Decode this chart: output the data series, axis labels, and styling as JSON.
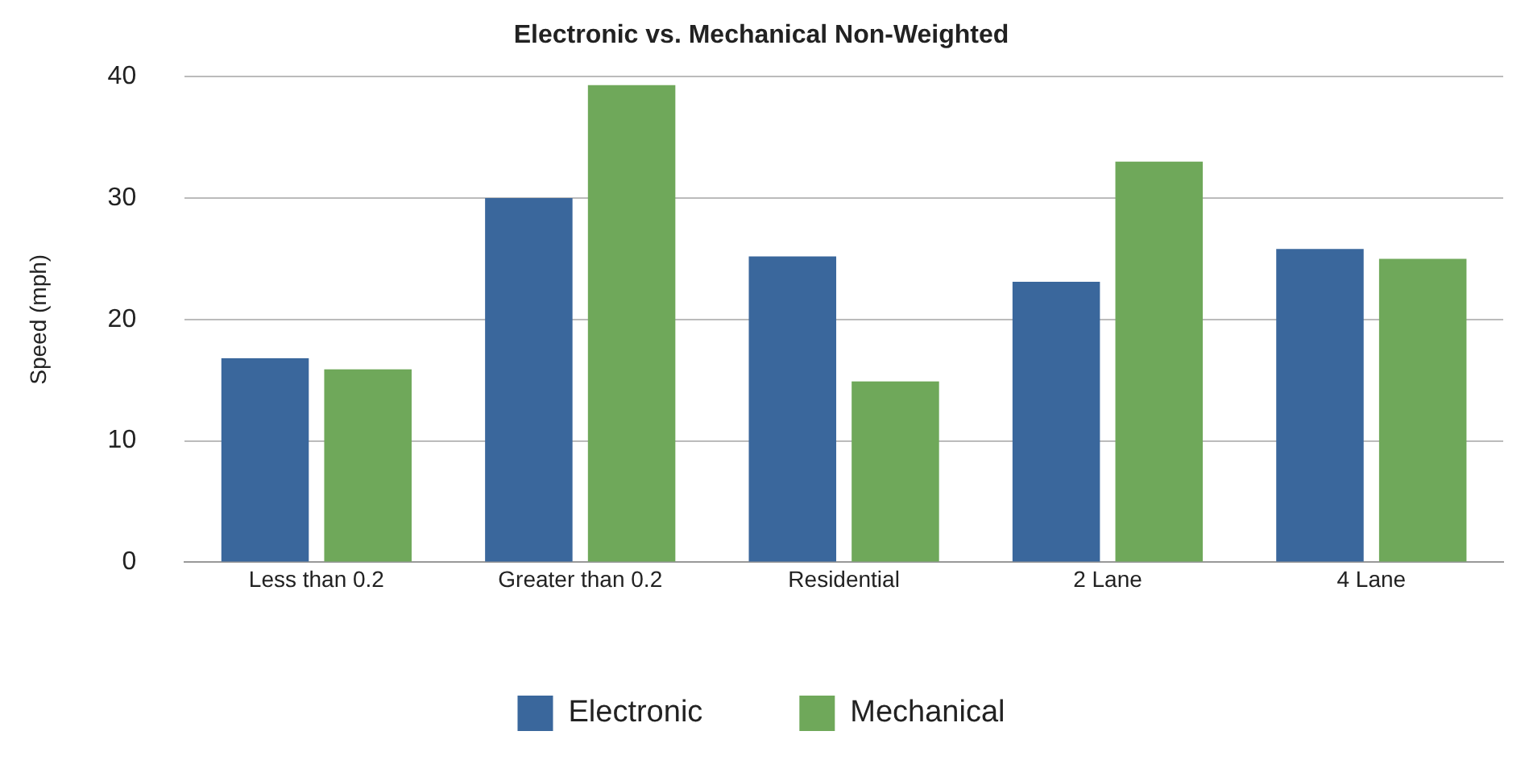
{
  "chart_data": {
    "type": "bar",
    "title": "Electronic vs. Mechanical Non-Weighted",
    "ylabel": "Speed (mph)",
    "categories": [
      "Less than 0.2",
      "Greater than 0.2",
      "Residential",
      "2 Lane",
      "4 Lane"
    ],
    "series": [
      {
        "name": "Electronic",
        "color": "#3a679c",
        "values": [
          16.8,
          30.0,
          25.2,
          23.1,
          25.8
        ]
      },
      {
        "name": "Mechanical",
        "color": "#6fa85a",
        "values": [
          15.9,
          39.3,
          14.9,
          33.0,
          25.0
        ]
      }
    ],
    "ylim": [
      0,
      40
    ],
    "yticks": [
      0,
      10,
      20,
      30,
      40
    ],
    "grid": "y",
    "legend": "bottom"
  }
}
